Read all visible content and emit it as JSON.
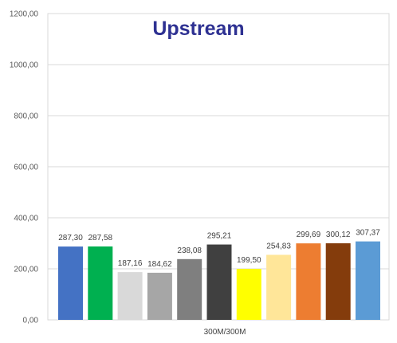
{
  "chart_data": {
    "type": "bar",
    "title": "Upstream",
    "categories": [
      "300M/300M"
    ],
    "xlabel": "",
    "ylabel": "",
    "ylim": [
      0,
      1200
    ],
    "yticks": [
      "0,00",
      "200,00",
      "400,00",
      "600,00",
      "800,00",
      "1000,00",
      "1200,00"
    ],
    "grid": true,
    "legend": "none",
    "series": [
      {
        "value": 287.3,
        "label": "287,30",
        "color": "#4472C4"
      },
      {
        "value": 287.58,
        "label": "287,58",
        "color": "#00B050"
      },
      {
        "value": 187.16,
        "label": "187,16",
        "color": "#D9D9D9"
      },
      {
        "value": 184.62,
        "label": "184,62",
        "color": "#A6A6A6"
      },
      {
        "value": 238.08,
        "label": "238,08",
        "color": "#7F7F7F"
      },
      {
        "value": 295.21,
        "label": "295,21",
        "color": "#404040"
      },
      {
        "value": 199.5,
        "label": "199,50",
        "color": "#FFFF00"
      },
      {
        "value": 254.83,
        "label": "254,83",
        "color": "#FFE699"
      },
      {
        "value": 299.69,
        "label": "299,69",
        "color": "#ED7D31"
      },
      {
        "value": 300.12,
        "label": "300,12",
        "color": "#843C0C"
      },
      {
        "value": 307.37,
        "label": "307,37",
        "color": "#5B9BD5"
      }
    ],
    "colors": {
      "title": "#2E3192",
      "grid": "#D9D9D9",
      "axis": "#BFBFBF"
    }
  }
}
